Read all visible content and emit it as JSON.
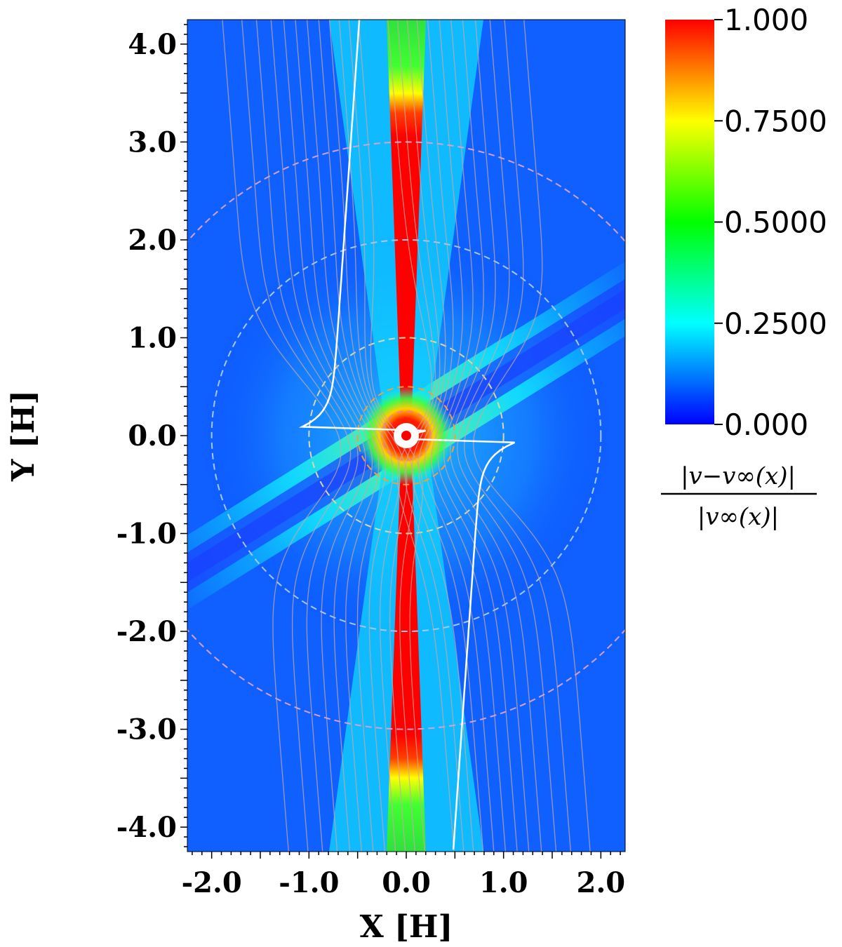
{
  "chart_data": {
    "type": "heatmap",
    "xlabel": "X [H]",
    "ylabel": "Y [H]",
    "xlim": [
      -2.25,
      2.25
    ],
    "ylim": [
      -4.25,
      4.25
    ],
    "x_ticks": [
      -2.0,
      -1.0,
      0.0,
      1.0,
      2.0
    ],
    "x_tick_labels": [
      "-2.0",
      "-1.0",
      "0.0",
      "1.0",
      "2.0"
    ],
    "y_ticks": [
      4.0,
      3.0,
      2.0,
      1.0,
      0.0,
      -1.0,
      -2.0,
      -3.0,
      -4.0
    ],
    "y_tick_labels": [
      "4.0",
      "3.0",
      "2.0",
      "1.0",
      "0.0",
      "-1.0",
      "-2.0",
      "-3.0",
      "-4.0"
    ],
    "colorbar": {
      "range": [
        0.0,
        1.0
      ],
      "ticks": [
        1.0,
        0.75,
        0.5,
        0.25,
        0.0
      ],
      "tick_labels": [
        "1.000",
        "0.7500",
        "0.5000",
        "0.2500",
        "0.000"
      ],
      "colors": [
        "#0000ff",
        "#00ffff",
        "#00ff00",
        "#ffff00",
        "#ff0000"
      ],
      "title_numerator": "|v−v∞(x)|",
      "title_denominator": "|v∞(x)|"
    },
    "contours": [
      {
        "radius": 0.25,
        "color": "#f08080"
      },
      {
        "radius": 0.5,
        "color": "#f4a030"
      },
      {
        "radius": 1.0,
        "color": "#d8d8a8"
      },
      {
        "radius": 2.0,
        "color": "#a8c8e8"
      },
      {
        "radius": 3.0,
        "color": "#d8a0d0"
      }
    ],
    "body": {
      "x": 0.0,
      "y": 0.0
    }
  }
}
